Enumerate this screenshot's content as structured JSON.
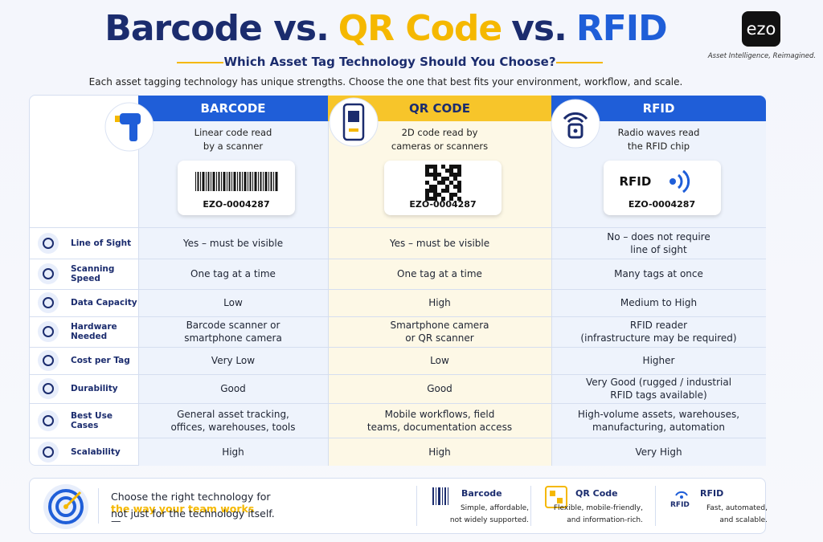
{
  "header": {
    "title": [
      "Barcode vs.",
      "QR Code",
      "vs.",
      "RFID"
    ],
    "subtitle": "Which Asset Tag Technology Should You Choose?",
    "description": "Each asset tagging technology has unique strengths. Choose the one that best fits your environment, workflow, and scale."
  },
  "logo": {
    "text": "ezo",
    "tagline": "Asset Intelligence, Reimagined."
  },
  "table": {
    "columns": [
      {
        "name": "BARCODE",
        "description": "Linear code read\nby a scanner",
        "tag": "EZO-0004287"
      },
      {
        "name": "QR CODE",
        "description": "2D code read by\ncameras or scanners",
        "tag": "EZO-0004287"
      },
      {
        "name": "RFID",
        "description": "Radio waves read\nthe RFID chip",
        "tag_label": "RFID",
        "tag": "EZO-0004287"
      }
    ],
    "rows": [
      {
        "label": "Line of Sight",
        "cells": [
          "Yes – must be visible",
          "Yes – must be visible",
          "No – does not require\nline of sight"
        ]
      },
      {
        "label": "Scanning Speed",
        "cells": [
          "One tag at a time",
          "One tag at a time",
          "Many tags at once"
        ]
      },
      {
        "label": "Data Capacity",
        "cells": [
          "Low",
          "High",
          "Medium to High"
        ]
      },
      {
        "label": "Hardware Needed",
        "cells": [
          "Barcode scanner or\nsmartphone camera",
          "Smartphone camera\nor QR scanner",
          "RFID reader\n(infrastructure may be required)"
        ]
      },
      {
        "label": "Cost per Tag",
        "cells": [
          "Very Low",
          "Low",
          "Higher"
        ]
      },
      {
        "label": "Durability",
        "cells": [
          "Good",
          "Good",
          "Very Good (rugged / industrial\nRFID tags available)"
        ]
      },
      {
        "label": "Best Use Cases",
        "cells": [
          "General asset tracking,\noffices, warehouses, tools",
          "Mobile workflows, field\nteams, documentation access",
          "High-volume assets, warehouses,\nmanufacturing, automation"
        ]
      },
      {
        "label": "Scalability",
        "cells": [
          "High",
          "High",
          "Very High"
        ]
      }
    ]
  },
  "footer": {
    "message": [
      "Choose the right technology for ",
      "the way your team works",
      "—",
      "not just for the technology itself."
    ],
    "summaries": [
      {
        "name": "Barcode",
        "text": "Simple, affordable,\nnot widely supported."
      },
      {
        "name": "QR Code",
        "text": "Flexible, mobile-friendly,\nand information-rich."
      },
      {
        "name": "RFID",
        "text": "Fast, automated,\nand scalable."
      }
    ]
  }
}
